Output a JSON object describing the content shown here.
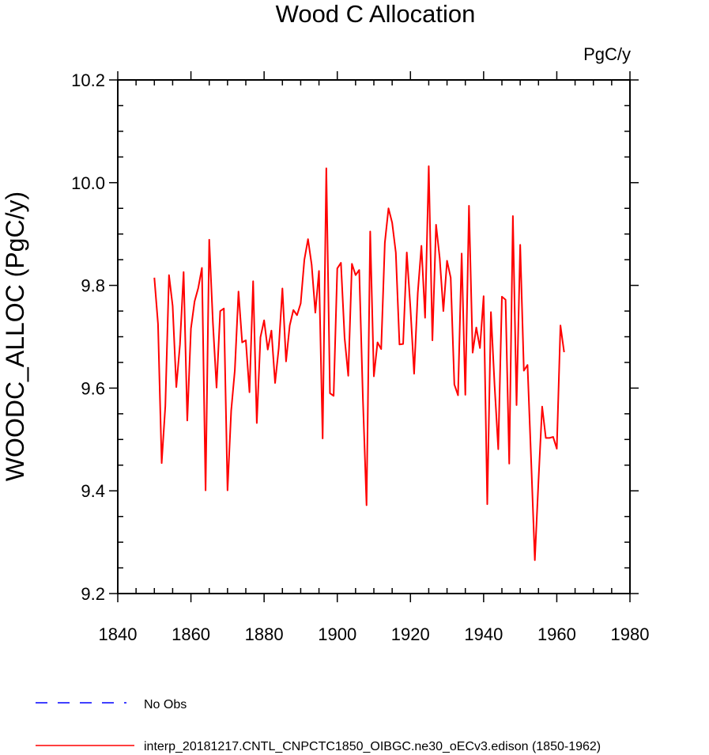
{
  "chart_data": {
    "type": "line",
    "title": "Wood C Allocation",
    "units_label": "PgC/y",
    "xlabel": "",
    "ylabel": "WOODC_ALLOC  (PgC/y)",
    "xlim": [
      1840,
      1980
    ],
    "ylim": [
      9.2,
      10.2
    ],
    "x_major_ticks": [
      1840,
      1860,
      1880,
      1900,
      1920,
      1940,
      1960,
      1980
    ],
    "x_tick_labels": [
      "1840",
      "1860",
      "1880",
      "1900",
      "1920",
      "1940",
      "1960",
      "1980"
    ],
    "x_minor_step": 5,
    "y_major_ticks": [
      9.2,
      9.4,
      9.6,
      9.8,
      10.0,
      10.2
    ],
    "y_tick_labels": [
      "9.2",
      "9.4",
      "9.6",
      "9.8",
      "10.0",
      "10.2"
    ],
    "y_minor_step": 0.05,
    "grid": false,
    "series": [
      {
        "name": "interp_20181217.CNTL_CNPCTC1850_OIBGC.ne30_oECv3.edison (1850-1962)",
        "color": "#ff0000",
        "style": "solid",
        "x": [
          1850,
          1851,
          1852,
          1853,
          1854,
          1855,
          1856,
          1857,
          1858,
          1859,
          1860,
          1861,
          1862,
          1863,
          1864,
          1865,
          1866,
          1867,
          1868,
          1869,
          1870,
          1871,
          1872,
          1873,
          1874,
          1875,
          1876,
          1877,
          1878,
          1879,
          1880,
          1881,
          1882,
          1883,
          1884,
          1885,
          1886,
          1887,
          1888,
          1889,
          1890,
          1891,
          1892,
          1893,
          1894,
          1895,
          1896,
          1897,
          1898,
          1899,
          1900,
          1901,
          1902,
          1903,
          1904,
          1905,
          1906,
          1907,
          1908,
          1909,
          1910,
          1911,
          1912,
          1913,
          1914,
          1915,
          1916,
          1917,
          1918,
          1919,
          1920,
          1921,
          1922,
          1923,
          1924,
          1925,
          1926,
          1927,
          1928,
          1929,
          1930,
          1931,
          1932,
          1933,
          1934,
          1935,
          1936,
          1937,
          1938,
          1939,
          1940,
          1941,
          1942,
          1943,
          1944,
          1945,
          1946,
          1947,
          1948,
          1949,
          1950,
          1951,
          1952,
          1953,
          1954,
          1955,
          1956,
          1957,
          1958,
          1959,
          1960,
          1961,
          1962
        ],
        "values": [
          9.815,
          9.725,
          9.454,
          9.565,
          9.82,
          9.76,
          9.602,
          9.685,
          9.826,
          9.537,
          9.716,
          9.769,
          9.795,
          9.834,
          9.401,
          9.889,
          9.728,
          9.601,
          9.75,
          9.755,
          9.401,
          9.556,
          9.635,
          9.788,
          9.689,
          9.693,
          9.592,
          9.808,
          9.532,
          9.699,
          9.732,
          9.675,
          9.712,
          9.61,
          9.678,
          9.794,
          9.652,
          9.722,
          9.752,
          9.742,
          9.765,
          9.85,
          9.89,
          9.84,
          9.747,
          9.828,
          9.502,
          10.028,
          9.59,
          9.585,
          9.833,
          9.844,
          9.698,
          9.624,
          9.842,
          9.82,
          9.83,
          9.58,
          9.372,
          9.905,
          9.623,
          9.689,
          9.676,
          9.883,
          9.95,
          9.922,
          9.864,
          9.685,
          9.686,
          9.864,
          9.755,
          9.628,
          9.785,
          9.877,
          9.737,
          10.032,
          9.693,
          9.918,
          9.853,
          9.75,
          9.848,
          9.815,
          9.607,
          9.586,
          9.862,
          9.587,
          9.955,
          9.669,
          9.718,
          9.678,
          9.779,
          9.374,
          9.748,
          9.605,
          9.481,
          9.778,
          9.772,
          9.453,
          9.935,
          9.567,
          9.879,
          9.634,
          9.645,
          9.457,
          9.265,
          9.42,
          9.564,
          9.503,
          9.503,
          9.505,
          9.482,
          9.722,
          9.67
        ]
      }
    ],
    "legend": [
      {
        "label": "No Obs",
        "color": "#0000ff",
        "style": "dashed"
      },
      {
        "label": "interp_20181217.CNTL_CNPCTC1850_OIBGC.ne30_oECv3.edison (1850-1962)",
        "color": "#ff0000",
        "style": "solid"
      }
    ],
    "legend_position": "bottom-left"
  }
}
